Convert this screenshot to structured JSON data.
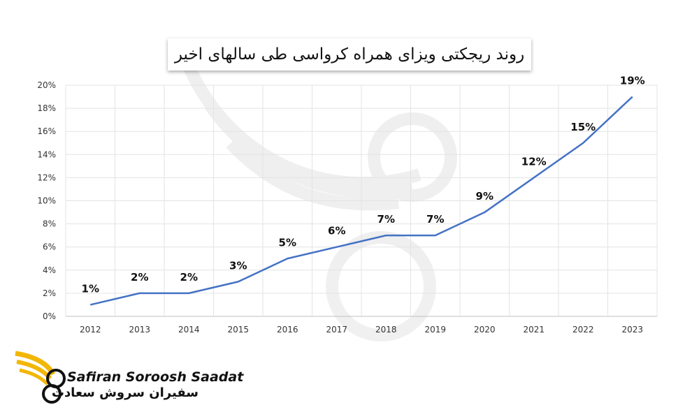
{
  "chart_data": {
    "type": "line",
    "title": "روند ریجکتی ویزای همراه کرواسی طی سالهای اخیر",
    "categories": [
      "2012",
      "2013",
      "2014",
      "2015",
      "2016",
      "2017",
      "2018",
      "2019",
      "2020",
      "2021",
      "2022",
      "2023"
    ],
    "values": [
      1,
      2,
      2,
      3,
      5,
      6,
      7,
      7,
      9,
      12,
      15,
      19
    ],
    "data_labels": [
      "1%",
      "2%",
      "2%",
      "3%",
      "5%",
      "6%",
      "7%",
      "7%",
      "9%",
      "12%",
      "15%",
      "19%"
    ],
    "yticks": [
      "0%",
      "2%",
      "4%",
      "6%",
      "8%",
      "10%",
      "12%",
      "14%",
      "16%",
      "18%",
      "20%"
    ],
    "ylim": [
      0,
      20
    ],
    "grid": true,
    "line_color": "#4472c4"
  },
  "brand": {
    "name_en": "Safiran Soroosh Saadat",
    "name_fa": "سفیران سروش سعادت",
    "accent_color": "#f2b705"
  }
}
